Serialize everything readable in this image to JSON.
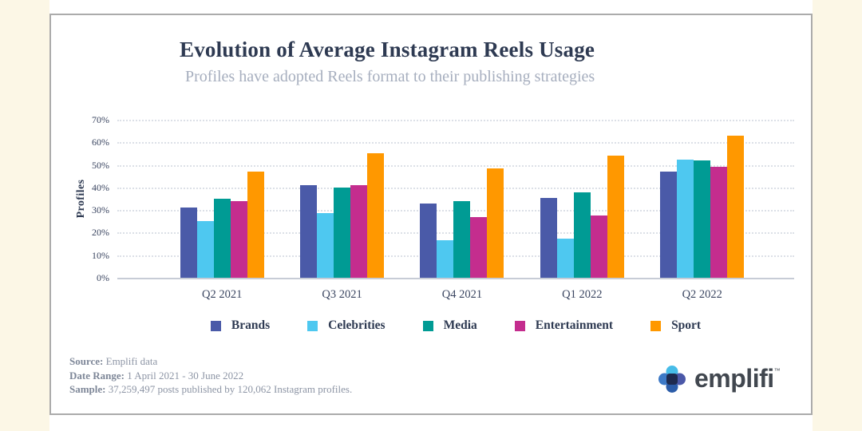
{
  "page": {
    "background_color": "#FCF7E6",
    "card_border_color": "#ABABAB"
  },
  "chart_data": {
    "type": "bar",
    "title": "Evolution of Average Instagram Reels Usage",
    "subtitle": "Profiles have adopted Reels format to their publishing strategies",
    "ylabel": "Profiles",
    "xlabel": "",
    "ylim": [
      0,
      70
    ],
    "ytick_step": 10,
    "yticks": [
      "0%",
      "10%",
      "20%",
      "30%",
      "40%",
      "50%",
      "60%",
      "70%"
    ],
    "grid": "horizontal-dotted",
    "legend_position": "bottom",
    "categories": [
      "Q2 2021",
      "Q3 2021",
      "Q4 2021",
      "Q1 2022",
      "Q2 2022"
    ],
    "series": [
      {
        "name": "Brands",
        "color": "#4A5AA8",
        "values": [
          31,
          41,
          33,
          35.5,
          47
        ]
      },
      {
        "name": "Celebrities",
        "color": "#4EC8F0",
        "values": [
          25,
          28.5,
          16.5,
          17.5,
          52.5
        ]
      },
      {
        "name": "Media",
        "color": "#009B94",
        "values": [
          35,
          40,
          34,
          38,
          52
        ]
      },
      {
        "name": "Entertainment",
        "color": "#C42D8E",
        "values": [
          34,
          41,
          27,
          27.5,
          49
        ]
      },
      {
        "name": "Sport",
        "color": "#FF9800",
        "values": [
          47,
          55,
          48.5,
          54,
          63
        ]
      }
    ]
  },
  "footer": {
    "source_label": "Source:",
    "source_value": "Emplifi data",
    "date_label": "Date Range:",
    "date_value": "1 April 2021 - 30 June 2022",
    "sample_label": "Sample:",
    "sample_value": "37,259,497 posts published by 120,062 Instagram profiles."
  },
  "logo": {
    "wordmark": "emplifi",
    "trademark": "™",
    "petal_colors": {
      "top": "#47BCE8",
      "left": "#3D79C6",
      "bottom": "#2B5CA8",
      "right": "#4B58A8",
      "center": "#1E2A4E"
    }
  }
}
